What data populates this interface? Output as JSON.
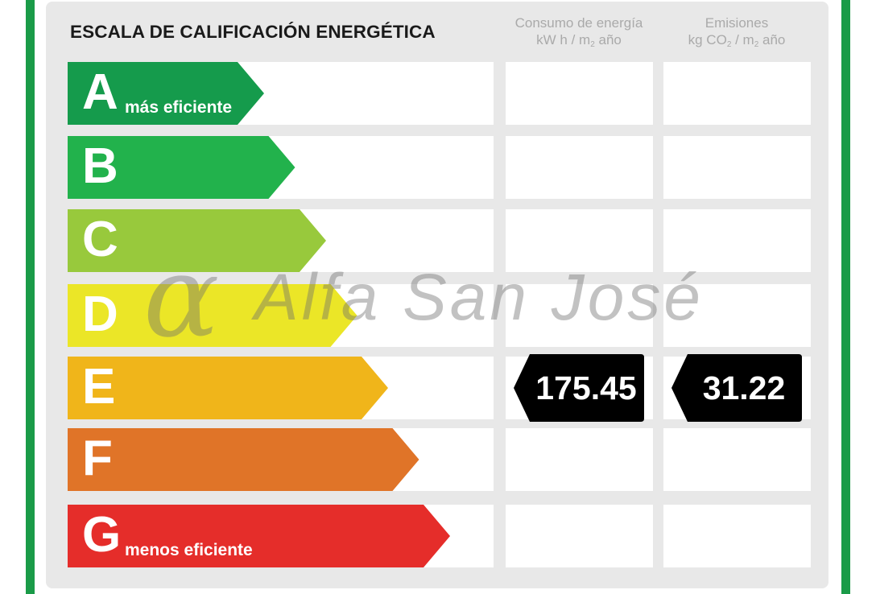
{
  "chart_data": {
    "type": "energy-label",
    "title": "ESCALA DE CALIFICACIÓN ENERGÉTICA",
    "columns": [
      {
        "line1": "Consumo de energía",
        "unit_a": "kW h / m",
        "unit_sub": "2",
        "unit_b": " año"
      },
      {
        "line1": "Emisiones",
        "unit_a": "kg CO",
        "unit_sub": "2",
        "unit_mid": " / m",
        "unit_sub2": "2",
        "unit_b": " año"
      }
    ],
    "ratings": [
      {
        "letter": "A",
        "label": "más eficiente",
        "color": "#159b4c"
      },
      {
        "letter": "B",
        "label": "",
        "color": "#22b24c"
      },
      {
        "letter": "C",
        "label": "",
        "color": "#98c93c"
      },
      {
        "letter": "D",
        "label": "",
        "color": "#ebe627"
      },
      {
        "letter": "E",
        "label": "",
        "color": "#f0b51a"
      },
      {
        "letter": "F",
        "label": "",
        "color": "#e07428"
      },
      {
        "letter": "G",
        "label": "menos eficiente",
        "color": "#e52d2a"
      }
    ],
    "current_rating": "E",
    "consumption_value": "175.45",
    "emissions_value": "31.22",
    "marker_color": "#000000"
  },
  "watermark": {
    "symbol": "α",
    "text": "Alfa San José"
  },
  "stripe_color": "#1a9b48"
}
